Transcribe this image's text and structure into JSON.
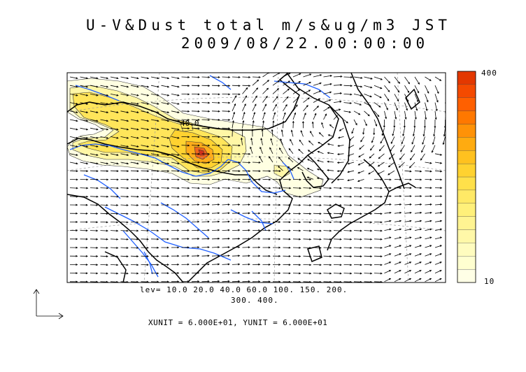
{
  "title": {
    "line1": "U-V&Dust total m/s&ug/m3 JST",
    "line2": "2009/08/22.00:00:00"
  },
  "contour": {
    "label_inline": "40.0",
    "levels_line1": "lev= 10.0 20.0 40.0 60.0 100. 150. 200.",
    "levels_line2": "300. 400.",
    "levels": [
      10,
      20,
      40,
      60,
      100,
      150,
      200,
      300,
      400
    ]
  },
  "colorbar": {
    "max_label": "400",
    "min_label": "10",
    "colors": [
      "#ffffe6",
      "#ffffd0",
      "#fffcbf",
      "#fff8a8",
      "#fff492",
      "#fff07a",
      "#ffe966",
      "#ffe04a",
      "#ffd230",
      "#ffc11f",
      "#ffab10",
      "#ff9207",
      "#ff7800",
      "#ff6000",
      "#f44a00",
      "#e33800"
    ]
  },
  "vector_units": {
    "text": "XUNIT = 6.000E+01, YUNIT = 6.000E+01"
  },
  "colors": {
    "coast": "#000000",
    "river": "#1f5fff",
    "grid": "#9a9a9a"
  }
}
